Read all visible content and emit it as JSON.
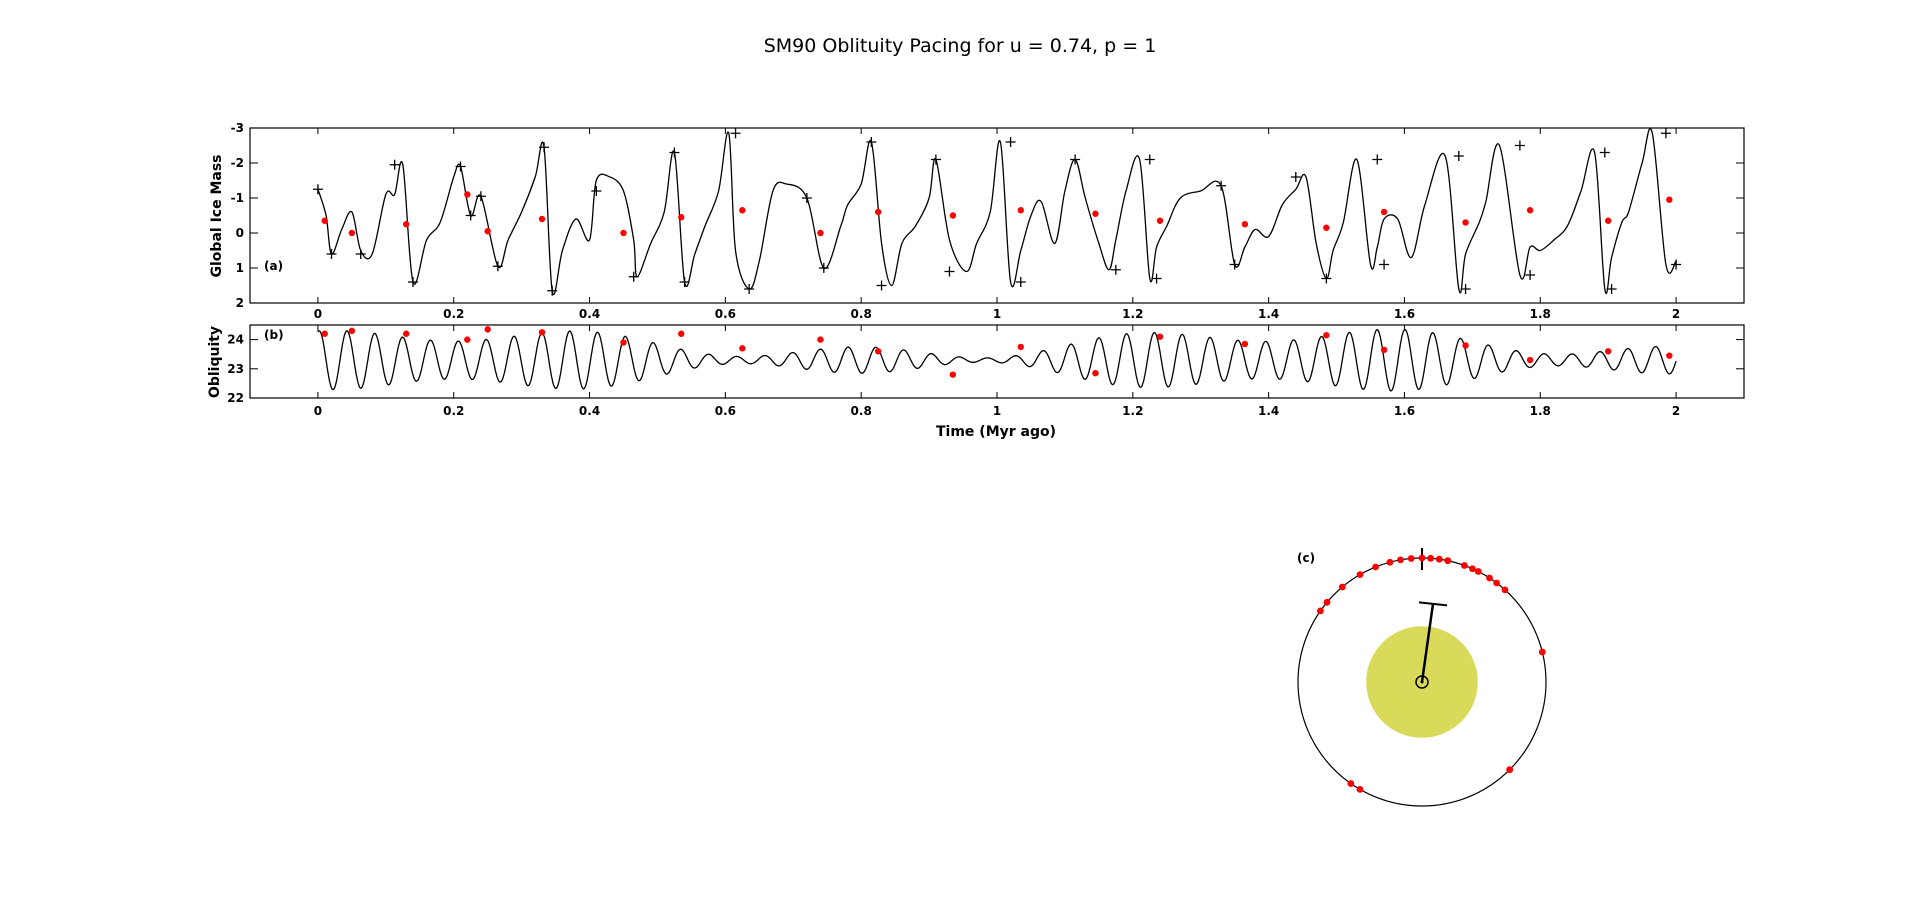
{
  "figure": {
    "title": "SM90 Oblituity Pacing for u = 0.74, p = 1",
    "panel_labels": {
      "a": "(a)",
      "b": "(b)",
      "c": "(c)"
    },
    "colors": {
      "line": "#000000",
      "marker": "#ff0000",
      "sun": "#d9d95a",
      "background": "#ffffff"
    }
  },
  "chart_data": [
    {
      "panel": "a",
      "type": "line",
      "ylabel": "Global Ice Mass",
      "xlim": [
        -0.1,
        2.1
      ],
      "ylim": [
        -3,
        2
      ],
      "y_inverted": true,
      "xticks": [
        "0",
        "0.2",
        "0.4",
        "0.6",
        "0.8",
        "1",
        "1.2",
        "1.4",
        "1.6",
        "1.8",
        "2"
      ],
      "yticks": [
        "-3",
        "-2",
        "-1",
        "0",
        "1",
        "2"
      ],
      "grid": false,
      "series": [
        {
          "marker": "line",
          "x": [
            0,
            0.012,
            0.02,
            0.035,
            0.05,
            0.063,
            0.08,
            0.1,
            0.113,
            0.125,
            0.14,
            0.16,
            0.18,
            0.2,
            0.21,
            0.225,
            0.24,
            0.265,
            0.28,
            0.3,
            0.32,
            0.333,
            0.345,
            0.36,
            0.38,
            0.4,
            0.41,
            0.43,
            0.45,
            0.465,
            0.47,
            0.49,
            0.51,
            0.525,
            0.54,
            0.555,
            0.57,
            0.59,
            0.605,
            0.615,
            0.635,
            0.65,
            0.67,
            0.69,
            0.72,
            0.745,
            0.77,
            0.78,
            0.8,
            0.815,
            0.83,
            0.845,
            0.86,
            0.88,
            0.9,
            0.91,
            0.93,
            0.955,
            0.97,
            0.99,
            1.005,
            1.02,
            1.035,
            1.05,
            1.065,
            1.085,
            1.1,
            1.115,
            1.13,
            1.15,
            1.165,
            1.175,
            1.19,
            1.21,
            1.225,
            1.235,
            1.25,
            1.27,
            1.3,
            1.33,
            1.35,
            1.365,
            1.38,
            1.4,
            1.42,
            1.44,
            1.455,
            1.47,
            1.485,
            1.495,
            1.51,
            1.53,
            1.55,
            1.56,
            1.57,
            1.59,
            1.61,
            1.63,
            1.66,
            1.68,
            1.69,
            1.71,
            1.72,
            1.74,
            1.77,
            1.785,
            1.8,
            1.82,
            1.84,
            1.86,
            1.88,
            1.895,
            1.905,
            1.92,
            1.93,
            1.95,
            1.965,
            1.985,
            2.0
          ],
          "y": [
            -1.25,
            -0.5,
            0.6,
            -0.1,
            -0.6,
            0.5,
            0.6,
            -1.1,
            -1.1,
            -1.95,
            1.4,
            0.2,
            -0.3,
            -1.6,
            -1.9,
            -0.5,
            -1.05,
            0.95,
            0.2,
            -0.6,
            -1.6,
            -2.45,
            1.65,
            0.5,
            -0.4,
            0.2,
            -1.5,
            -1.6,
            -1.2,
            0.2,
            1.25,
            0.3,
            -0.6,
            -2.3,
            1.4,
            0.6,
            -0.2,
            -1.2,
            -2.85,
            0.5,
            1.6,
            0.8,
            -1.2,
            -1.4,
            -1.0,
            1.0,
            -0.2,
            -0.8,
            -1.4,
            -2.6,
            0.3,
            1.5,
            0.3,
            -0.2,
            -1.0,
            -2.1,
            0.2,
            1.1,
            0.3,
            -0.6,
            -2.6,
            1.4,
            0.5,
            -0.5,
            -0.9,
            0.3,
            -1.2,
            -2.1,
            -1.0,
            0.3,
            1.05,
            0.2,
            -1.2,
            -2.1,
            1.3,
            0.4,
            -0.2,
            -1.0,
            -1.2,
            -1.35,
            0.9,
            0.4,
            -0.1,
            0.1,
            -0.8,
            -1.25,
            -1.6,
            0.3,
            1.3,
            0.5,
            -0.3,
            -2.1,
            0.9,
            0.4,
            -0.4,
            -0.4,
            0.7,
            -0.8,
            -2.2,
            1.6,
            0.6,
            -0.3,
            -0.9,
            -2.5,
            1.2,
            0.4,
            0.5,
            0.2,
            -0.2,
            -1.2,
            -2.3,
            1.6,
            0.7,
            -0.3,
            -0.6,
            -2.0,
            -2.85,
            0.9,
            0.8
          ]
        },
        {
          "marker": "plus",
          "x": [
            0,
            0.02,
            0.063,
            0.113,
            0.14,
            0.21,
            0.225,
            0.24,
            0.265,
            0.333,
            0.345,
            0.41,
            0.465,
            0.525,
            0.54,
            0.615,
            0.635,
            0.72,
            0.745,
            0.815,
            0.83,
            0.91,
            0.93,
            1.02,
            1.035,
            1.115,
            1.175,
            1.225,
            1.235,
            1.33,
            1.35,
            1.44,
            1.485,
            1.56,
            1.57,
            1.68,
            1.69,
            1.77,
            1.785,
            1.895,
            1.905,
            1.985,
            2.0
          ],
          "y": [
            -1.25,
            0.6,
            0.6,
            -1.95,
            1.4,
            -1.9,
            -0.5,
            -1.05,
            0.95,
            -2.45,
            1.65,
            -1.2,
            1.25,
            -2.3,
            1.4,
            -2.85,
            1.6,
            -1.0,
            1.0,
            -2.6,
            1.5,
            -2.1,
            1.1,
            -2.6,
            1.4,
            -2.1,
            1.05,
            -2.1,
            1.3,
            -1.35,
            0.9,
            -1.6,
            1.3,
            -2.1,
            0.9,
            -2.2,
            1.6,
            -2.5,
            1.2,
            -2.3,
            1.6,
            -2.85,
            0.9
          ]
        },
        {
          "marker": "red-dot",
          "x": [
            0.01,
            0.05,
            0.13,
            0.22,
            0.25,
            0.33,
            0.45,
            0.535,
            0.625,
            0.74,
            0.825,
            0.935,
            1.035,
            1.145,
            1.24,
            1.365,
            1.485,
            1.57,
            1.69,
            1.785,
            1.9,
            1.99
          ],
          "y": [
            -0.35,
            0.0,
            -0.25,
            -1.1,
            -0.05,
            -0.4,
            0.0,
            -0.45,
            -0.65,
            0.0,
            -0.6,
            -0.5,
            -0.65,
            -0.55,
            -0.35,
            -0.25,
            -0.15,
            -0.6,
            -0.3,
            -0.65,
            -0.35,
            -0.95
          ]
        }
      ]
    },
    {
      "panel": "b",
      "type": "line",
      "ylabel": "Obliquity",
      "xlabel": "Time (Myr ago)",
      "xlim": [
        -0.1,
        2.1
      ],
      "ylim": [
        22,
        24.5
      ],
      "xticks": [
        "0",
        "0.2",
        "0.4",
        "0.6",
        "0.8",
        "1",
        "1.2",
        "1.4",
        "1.6",
        "1.8",
        "2"
      ],
      "yticks": [
        "22",
        "23",
        "24"
      ],
      "grid": false,
      "obliquity_period_myr": 0.041,
      "series": [
        {
          "marker": "red-dot",
          "x": [
            0.01,
            0.05,
            0.13,
            0.22,
            0.25,
            0.33,
            0.45,
            0.535,
            0.625,
            0.74,
            0.825,
            0.935,
            1.035,
            1.145,
            1.24,
            1.365,
            1.485,
            1.57,
            1.69,
            1.785,
            1.9,
            1.99
          ],
          "y": [
            24.2,
            24.3,
            24.2,
            24.0,
            24.35,
            24.25,
            23.9,
            24.2,
            23.7,
            24.0,
            23.6,
            22.8,
            23.75,
            22.85,
            24.1,
            23.85,
            24.15,
            23.65,
            23.8,
            23.3,
            23.6,
            23.45
          ]
        }
      ]
    },
    {
      "panel": "c",
      "type": "scatter",
      "markers_count": 22,
      "marker_angles_deg": [
        -55,
        -50,
        -40,
        -30,
        -22,
        -15,
        -10,
        -5,
        0,
        4,
        8,
        12,
        20,
        24,
        27,
        33,
        37,
        42,
        76,
        135,
        210,
        215
      ],
      "sun_radius_fraction": 0.45,
      "pointer_angle_deg": 8,
      "pointer_length_fraction": 0.64
    }
  ]
}
